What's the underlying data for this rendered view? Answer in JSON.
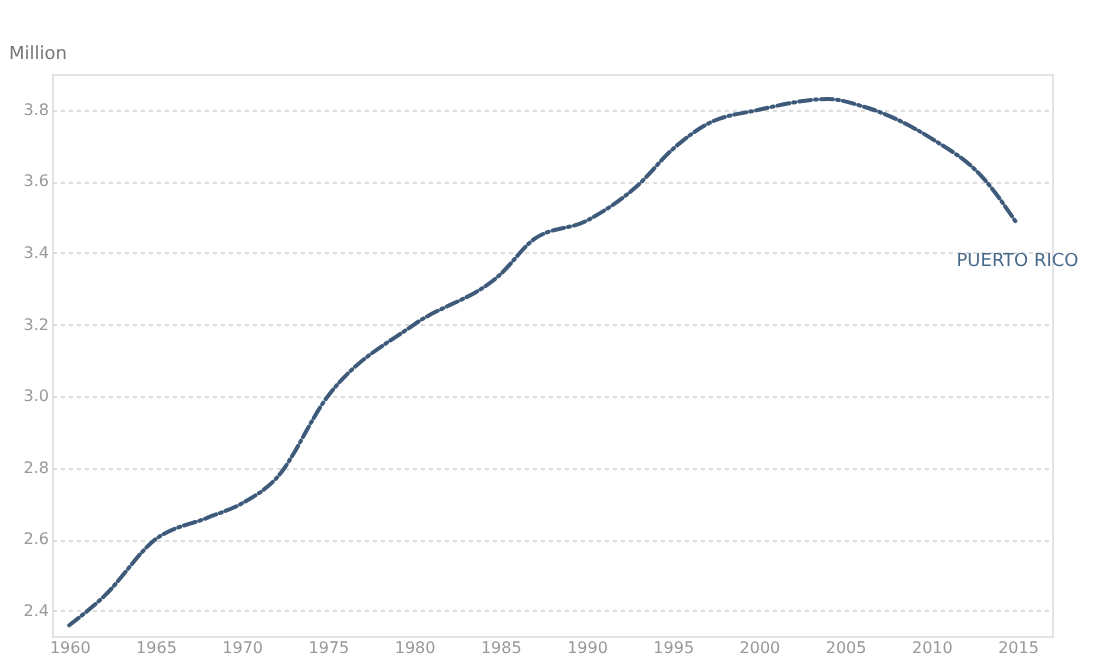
{
  "chart_data": {
    "type": "line",
    "ylabel": "Million",
    "x": [
      1960,
      1962,
      1965,
      1968,
      1970,
      1972,
      1975,
      1980,
      1985,
      1987,
      1990,
      1993,
      1995,
      1997,
      2000,
      2004,
      2006,
      2010,
      2013,
      2015
    ],
    "series": [
      {
        "name": "PUERTO RICO",
        "color": "#3d5a7a",
        "values": [
          2.36,
          2.44,
          2.6,
          2.66,
          2.7,
          2.77,
          3.0,
          3.2,
          3.34,
          3.44,
          3.49,
          3.59,
          3.69,
          3.76,
          3.8,
          3.83,
          3.81,
          3.72,
          3.61,
          3.48
        ]
      }
    ],
    "xlim": [
      1959,
      2017
    ],
    "ylim": [
      2.33,
      3.9
    ],
    "xticks": [
      1960,
      1965,
      1970,
      1975,
      1980,
      1985,
      1990,
      1995,
      2000,
      2005,
      2010,
      2015
    ],
    "yticks": [
      2.4,
      2.6,
      2.8,
      {
        "value": 3,
        "label": "3.0"
      },
      3.2,
      3.4,
      3.6,
      3.8
    ],
    "grid": "y",
    "line_style": "dashed",
    "marker": "none",
    "legend": false
  }
}
